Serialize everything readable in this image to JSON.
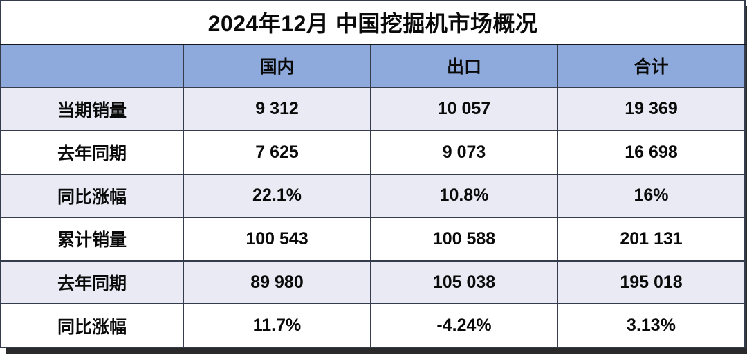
{
  "title": "2024年12月 中国挖掘机市场概况",
  "table": {
    "columns": [
      "",
      "国内",
      "出口",
      "合计"
    ],
    "rows": [
      {
        "label": "当期销量",
        "values": [
          "9 312",
          "10 057",
          "19 369"
        ]
      },
      {
        "label": "去年同期",
        "values": [
          "7 625",
          "9 073",
          "16 698"
        ]
      },
      {
        "label": "同比涨幅",
        "values": [
          "22.1%",
          "10.8%",
          "16%"
        ]
      },
      {
        "label": "累计销量",
        "values": [
          "100 543",
          "100 588",
          "201 131"
        ]
      },
      {
        "label": "去年同期",
        "values": [
          "89 980",
          "105 038",
          "195 018"
        ]
      },
      {
        "label": "同比涨幅",
        "values": [
          "11.7%",
          "-4.24%",
          "3.13%"
        ]
      }
    ]
  },
  "colors": {
    "header_bg": "#8EA9DB",
    "band_row_bg": "#E9EAF4",
    "plain_row_bg": "#FFFFFF",
    "border": "#353C4B",
    "outer_border": "#15171E",
    "shadow": "#2A2A2A",
    "text": "#0A0A0A"
  },
  "chart_data": {
    "type": "table",
    "title": "2024年12月 中国挖掘机市场概况",
    "columns": [
      "国内",
      "出口",
      "合计"
    ],
    "row_labels": [
      "当期销量",
      "去年同期",
      "同比涨幅",
      "累计销量",
      "去年同期",
      "同比涨幅"
    ],
    "rows": [
      {
        "label": "当期销量",
        "国内": 9312,
        "出口": 10057,
        "合计": 19369
      },
      {
        "label": "去年同期",
        "国内": 7625,
        "出口": 9073,
        "合计": 16698
      },
      {
        "label": "同比涨幅",
        "国内": "22.1%",
        "出口": "10.8%",
        "合计": "16%"
      },
      {
        "label": "累计销量",
        "国内": 100543,
        "出口": 100588,
        "合计": 201131
      },
      {
        "label": "去年同期",
        "国内": 89980,
        "出口": 105038,
        "合计": 195018
      },
      {
        "label": "同比涨幅",
        "国内": "11.7%",
        "出口": "-4.24%",
        "合计": "3.13%"
      }
    ],
    "notes": "数字千位以空格分隔；表头行为蓝色底，数据行蓝白相间"
  }
}
